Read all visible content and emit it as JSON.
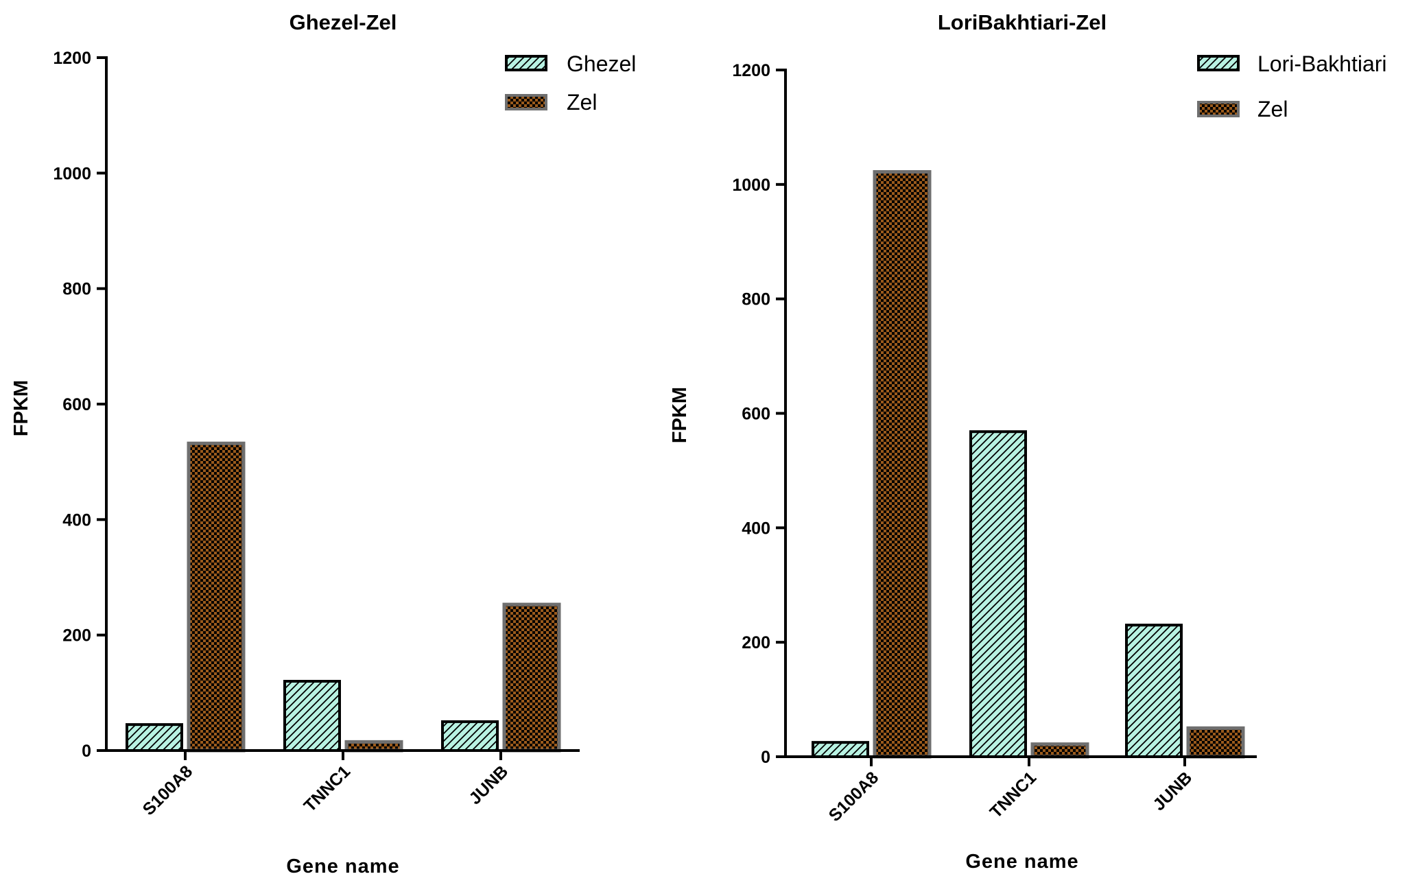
{
  "colors": {
    "series1_fill": "#b8f2e2",
    "series2_fill": "#9a5a1c",
    "series2_check": "#000000",
    "series2_stroke": "#6f6f6f",
    "axis": "#000000"
  },
  "chart_data": [
    {
      "type": "bar",
      "title": "Ghezel-Zel",
      "xlabel": "Gene name",
      "ylabel": "FPKM",
      "categories": [
        "S100A8",
        "TNNC1",
        "JUNB"
      ],
      "ylim": [
        0,
        1200
      ],
      "yticks": [
        "0",
        "200",
        "400",
        "600",
        "800",
        "1000",
        "1200"
      ],
      "series": [
        {
          "name": "Ghezel",
          "values": [
            45,
            120,
            50
          ]
        },
        {
          "name": "Zel",
          "values": [
            532,
            15,
            253
          ]
        }
      ],
      "legend": "top-right"
    },
    {
      "type": "bar",
      "title": "LoriBakhtiari-Zel",
      "xlabel": "Gene name",
      "ylabel": "FPKM",
      "categories": [
        "S100A8",
        "TNNC1",
        "JUNB"
      ],
      "ylim": [
        0,
        1200
      ],
      "yticks": [
        "0",
        "200",
        "400",
        "600",
        "800",
        "1000",
        "1200"
      ],
      "series": [
        {
          "name": "Lori-Bakhtiari",
          "values": [
            25,
            568,
            230
          ]
        },
        {
          "name": "Zel",
          "values": [
            1022,
            22,
            50
          ]
        }
      ],
      "legend": "top-right"
    }
  ]
}
